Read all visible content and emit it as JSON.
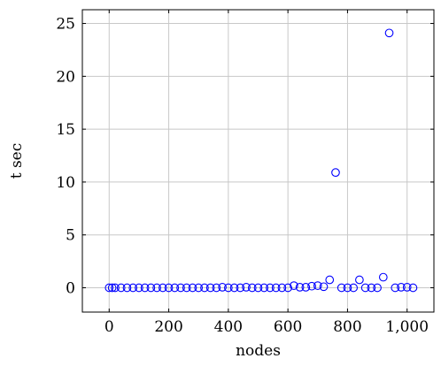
{
  "chart_data": {
    "type": "scatter",
    "xlabel": "nodes",
    "ylabel": "t sec",
    "xlim": [
      -90,
      1090
    ],
    "ylim": [
      -2.3,
      26.3
    ],
    "grid": true,
    "marker": "circle-open",
    "marker_color": "#0000ff",
    "x_ticks": [
      0,
      200,
      400,
      600,
      800,
      1000
    ],
    "x_tick_labels": [
      "0",
      "200",
      "400",
      "600",
      "800",
      "1,000"
    ],
    "y_ticks": [
      0,
      5,
      10,
      15,
      20,
      25
    ],
    "y_tick_labels": [
      "0",
      "5",
      "10",
      "15",
      "20",
      "25"
    ],
    "series": [
      {
        "x": [
          0,
          10,
          20,
          40,
          60,
          80,
          100,
          120,
          140,
          160,
          180,
          200,
          220,
          240,
          260,
          280,
          300,
          320,
          340,
          360,
          380,
          400,
          420,
          440,
          460,
          480,
          500,
          520,
          540,
          560,
          580,
          600,
          620,
          640,
          660,
          680,
          700,
          720,
          740,
          760,
          780,
          800,
          820,
          840,
          860,
          880,
          900,
          920,
          940,
          960,
          980,
          1000,
          1020
        ],
        "y": [
          0,
          0,
          0,
          0,
          0,
          0,
          0,
          0,
          0,
          0,
          0,
          0,
          0,
          0,
          0,
          0,
          0,
          0,
          0,
          0,
          0.05,
          0,
          0,
          0,
          0.05,
          0,
          0,
          0,
          0,
          0,
          0,
          0,
          0.2,
          0.05,
          0.05,
          0.15,
          0.2,
          0.1,
          0.75,
          10.9,
          0,
          0,
          0,
          0.75,
          0,
          0,
          0,
          1.0,
          24.1,
          0,
          0.05,
          0.05,
          0
        ]
      }
    ]
  }
}
